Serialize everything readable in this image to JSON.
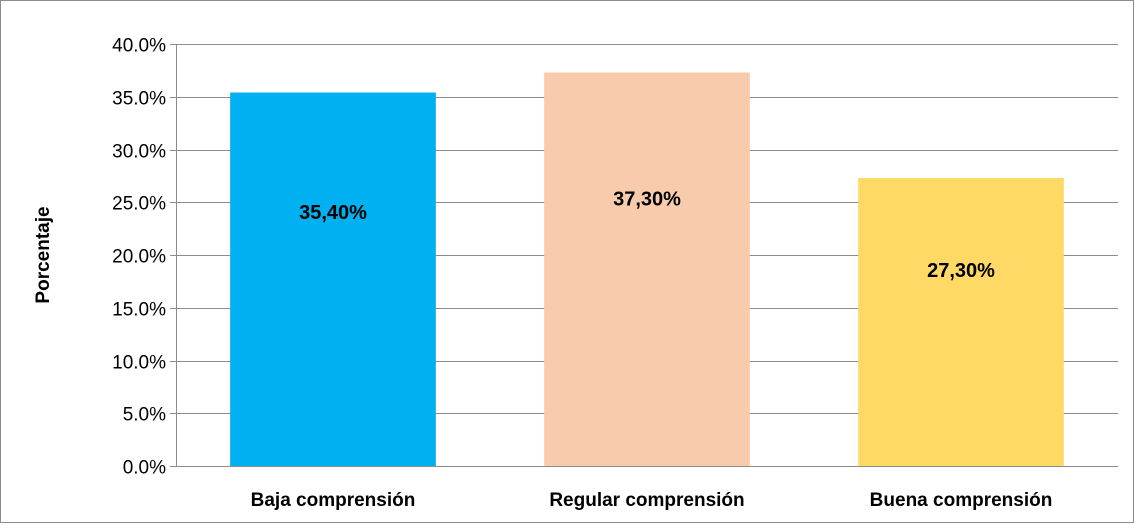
{
  "chart_data": {
    "type": "bar",
    "title": "",
    "xlabel": "",
    "ylabel": "Porcentaje",
    "ylim": [
      0,
      40
    ],
    "yticks": [
      "0.0%",
      "5.0%",
      "10.0%",
      "15.0%",
      "20.0%",
      "25.0%",
      "30.0%",
      "35.0%",
      "40.0%"
    ],
    "grid": true,
    "legend": "none",
    "categories": [
      "Baja comprensión",
      "Regular comprensión",
      "Buena comprensión"
    ],
    "values": [
      35.4,
      37.3,
      27.3
    ],
    "data_labels": [
      "35,40%",
      "37,30%",
      "27,30%"
    ],
    "colors": [
      "#00b0f0",
      "#f8cbad",
      "#ffd966"
    ]
  }
}
